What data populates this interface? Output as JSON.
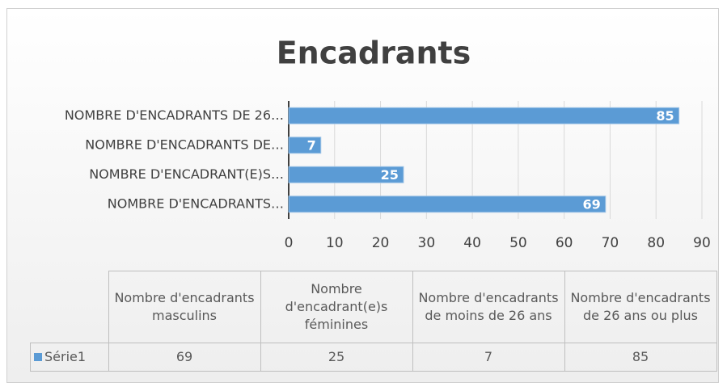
{
  "chart_data": {
    "type": "hbar",
    "title": "Encadrants",
    "categories": [
      "Nombre d'encadrants masculins",
      "Nombre d'encadrant(e)s féminines",
      "Nombre d'encadrants de moins de 26 ans",
      "Nombre d'encadrants de 26 ans ou plus"
    ],
    "category_axis_labels": [
      "NOMBRE D'ENCADRANTS…",
      "NOMBRE D'ENCADRANT(E)S…",
      "NOMBRE D'ENCADRANTS DE…",
      "NOMBRE D'ENCADRANTS DE 26…"
    ],
    "series": [
      {
        "name": "Série1",
        "color": "#5b9bd5",
        "values": [
          69,
          25,
          7,
          85
        ]
      }
    ],
    "xlim": [
      0,
      90
    ],
    "xticks": [
      0,
      10,
      20,
      30,
      40,
      50,
      60,
      70,
      80,
      90
    ],
    "grid": true
  }
}
